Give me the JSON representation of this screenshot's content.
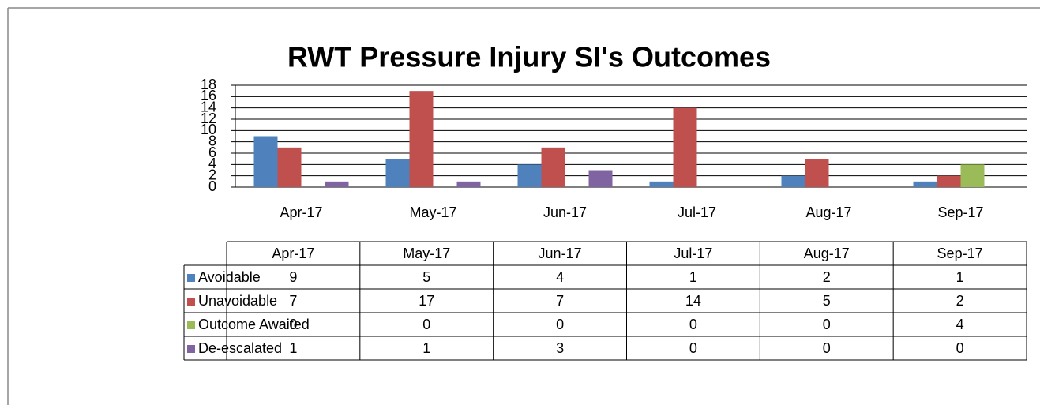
{
  "chart_data": {
    "type": "bar",
    "title": "RWT Pressure Injury SI's  Outcomes",
    "categories": [
      "Apr-17",
      "May-17",
      "Jun-17",
      "Jul-17",
      "Aug-17",
      "Sep-17"
    ],
    "series": [
      {
        "name": "Avoidable",
        "color": "#4f81bd",
        "values": [
          9,
          5,
          4,
          1,
          2,
          1
        ]
      },
      {
        "name": "Unavoidable",
        "color": "#c0504d",
        "values": [
          7,
          17,
          7,
          14,
          5,
          2
        ]
      },
      {
        "name": "Outcome Awaited",
        "color": "#9bbb59",
        "values": [
          0,
          0,
          0,
          0,
          0,
          4
        ]
      },
      {
        "name": "De-escalated",
        "color": "#8064a2",
        "values": [
          1,
          1,
          3,
          0,
          0,
          0
        ]
      }
    ],
    "ylim": [
      0,
      18
    ],
    "yticks": [
      0,
      2,
      4,
      6,
      8,
      10,
      12,
      14,
      16,
      18
    ],
    "grid": true,
    "data_table": true
  }
}
